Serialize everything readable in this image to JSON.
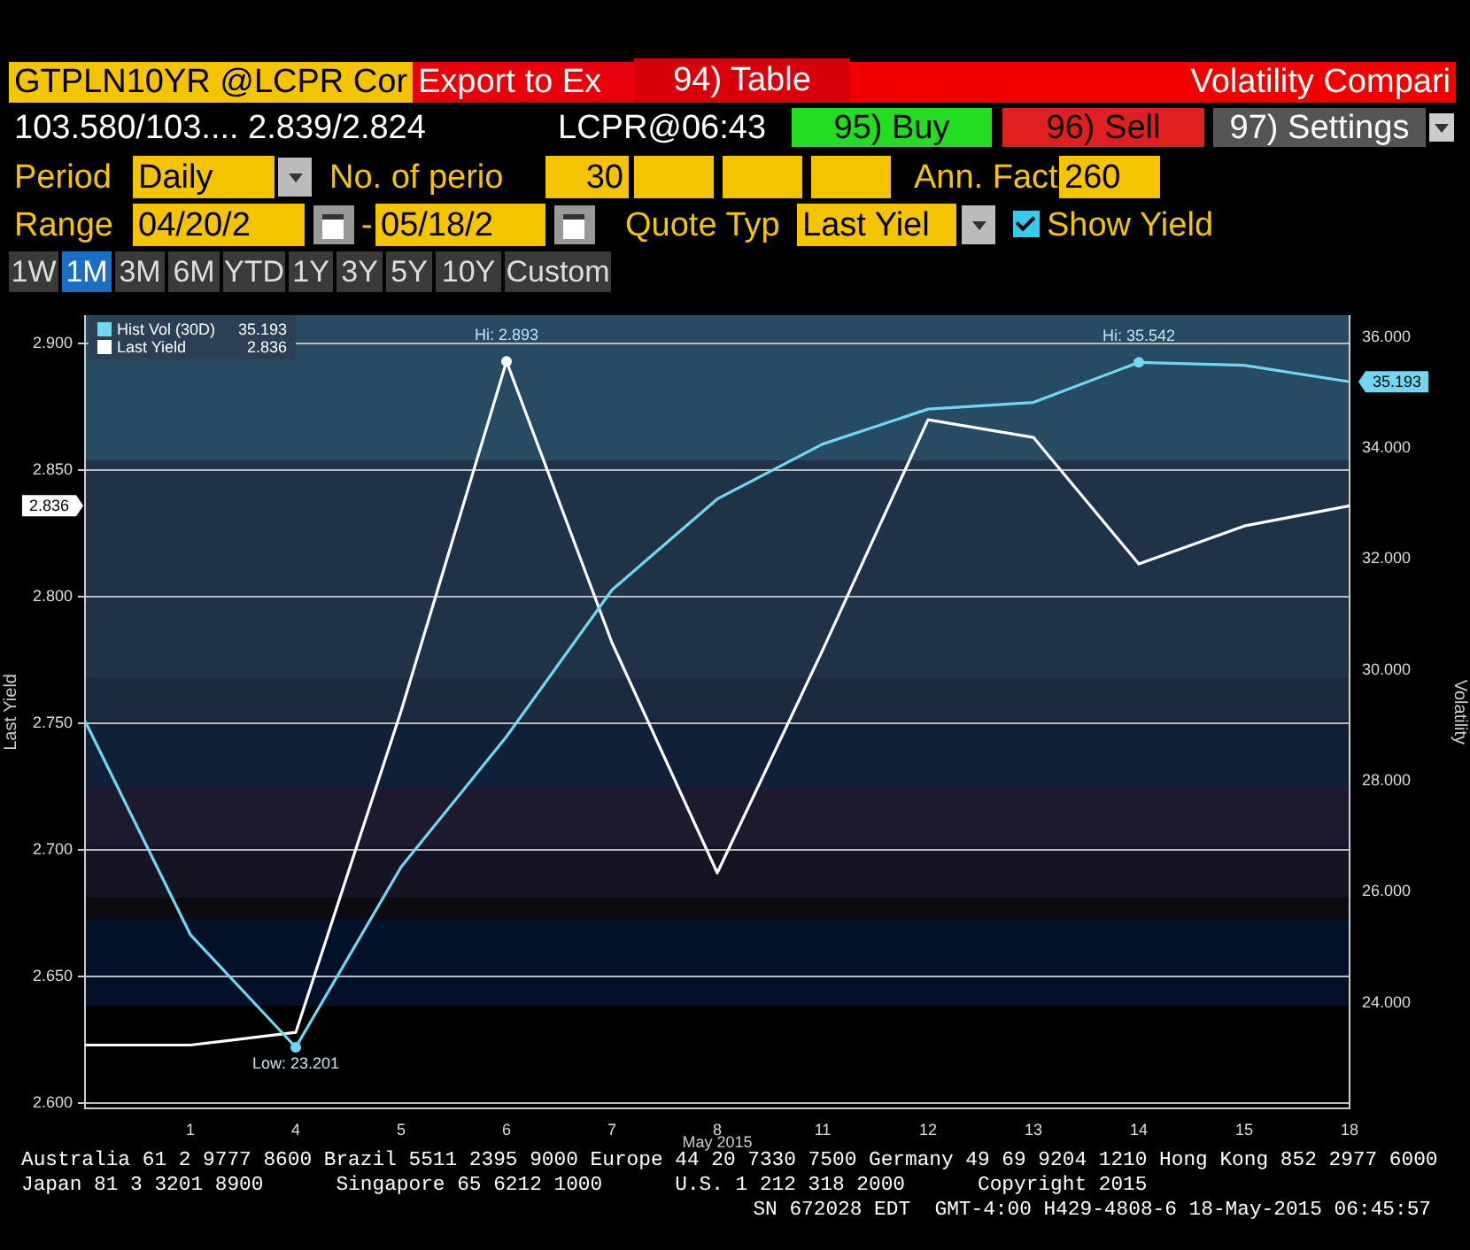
{
  "chart_data": {
    "type": "line",
    "xlabel": "May 2015",
    "ylabel": "Last Yield",
    "y2label": "Volatility",
    "categories": [
      null,
      "1",
      "4",
      "5",
      "6",
      "7",
      "8",
      "11",
      "12",
      "13",
      "14",
      "15",
      "18"
    ],
    "series": [
      {
        "name": "Hist Vol (30D)",
        "color": "#6fd8f0",
        "axis": "y2",
        "values": [
          29.08,
          25.23,
          23.201,
          26.45,
          28.8,
          31.44,
          33.08,
          34.07,
          34.7,
          34.82,
          35.542,
          35.49,
          35.193
        ]
      },
      {
        "name": "Last Yield",
        "color": "#ffffff",
        "values": [
          2.623,
          2.623,
          2.628,
          2.755,
          2.893,
          2.782,
          2.691,
          2.779,
          2.87,
          2.863,
          2.813,
          2.828,
          2.836
        ]
      }
    ],
    "ylim": [
      2.598,
      2.911
    ],
    "yticks": [
      {
        "value": 2.6,
        "label": "2.600"
      },
      {
        "value": 2.65,
        "label": "2.650"
      },
      {
        "value": 2.7,
        "label": "2.700"
      },
      {
        "value": 2.75,
        "label": "2.750"
      },
      {
        "value": 2.8,
        "label": "2.800"
      },
      {
        "value": 2.85,
        "label": "2.850"
      },
      {
        "value": 2.9,
        "label": "2.900"
      }
    ],
    "y2lim": [
      22.1,
      36.38
    ],
    "y2ticks": [
      {
        "value": 24,
        "label": "24.000"
      },
      {
        "value": 26,
        "label": "26.000"
      },
      {
        "value": 28,
        "label": "28.000"
      },
      {
        "value": 30,
        "label": "30.000"
      },
      {
        "value": 32,
        "label": "32.000"
      },
      {
        "value": 34,
        "label": "34.000"
      },
      {
        "value": 36,
        "label": "36.000"
      }
    ],
    "grid": "y",
    "legend": "top left",
    "marker": "none",
    "line_style": "solid",
    "annotations": [
      "GTPLN10YR @LCPR Cor",
      "Export to Ex",
      "94) Table",
      "Volatility Compari",
      "103.580/103.... 2.839/2.824",
      "LCPR@06:43",
      "95) Buy",
      "96) Sell",
      "97) Settings",
      "Period",
      "Daily",
      "No. of perio",
      "30",
      "Ann. Fact",
      "260",
      "Range",
      "04/20/2",
      "-",
      "05/18/2",
      "Quote Typ",
      "Last Yiel",
      "Show Yield",
      "1W",
      "1M",
      "3M",
      "6M",
      "YTD",
      "1Y",
      "3Y",
      "5Y",
      "10Y",
      "Custom",
      "Australia 61 2 9777 8600 Brazil 5511 2395 9000 Europe 44 20 7330 7500 Germany 49 69 9204 1210 Hong Kong 852 2977 6000",
      "Japan 81 3 3201 8900      Singapore 65 6212 1000      U.S. 1 212 318 2000      Copyright 2015",
      "SN 672028 EDT  GMT-4:00 H429-4808-6 18-May-2015 06:45:57",
      {
        "text": "Hi: 2.893",
        "x": "6",
        "y": 2.893
      },
      "Low: 23.201",
      "Hi: 35.542",
      "35.193",
      "2.836",
      "2.836",
      "35.193"
    ]
  }
}
